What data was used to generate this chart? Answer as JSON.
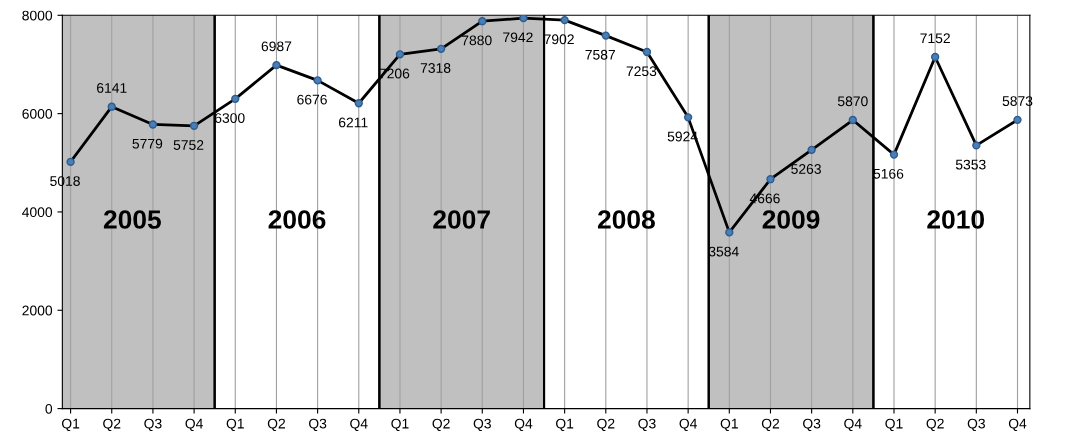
{
  "chart_data": {
    "type": "line",
    "categories": [
      "Q1",
      "Q2",
      "Q3",
      "Q4",
      "Q1",
      "Q2",
      "Q3",
      "Q4",
      "Q1",
      "Q2",
      "Q3",
      "Q4",
      "Q1",
      "Q2",
      "Q3",
      "Q4",
      "Q1",
      "Q2",
      "Q3",
      "Q4",
      "Q1",
      "Q2",
      "Q3",
      "Q4"
    ],
    "series": [
      {
        "color": "#000000",
        "values": [
          5018,
          6141,
          5779,
          5752,
          6300,
          6987,
          6676,
          6211,
          7206,
          7318,
          7880,
          7942,
          7902,
          7587,
          7253,
          5924,
          3584,
          4666,
          5263,
          5870,
          5166,
          7152,
          5353,
          5873
        ]
      }
    ],
    "marker": "circle",
    "line_style": "solid",
    "data_labels": true,
    "ylim": [
      0,
      8000
    ],
    "yticks": [
      0,
      2000,
      4000,
      6000,
      8000
    ],
    "grid": "x",
    "legend": false,
    "annotations": [
      "2005",
      "2006",
      "2007",
      "2008",
      "2009",
      "2010"
    ]
  }
}
